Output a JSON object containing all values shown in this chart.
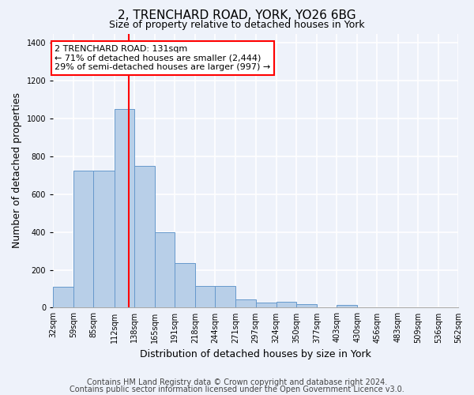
{
  "title": "2, TRENCHARD ROAD, YORK, YO26 6BG",
  "subtitle": "Size of property relative to detached houses in York",
  "xlabel": "Distribution of detached houses by size in York",
  "ylabel": "Number of detached properties",
  "bin_edges": [
    32,
    59,
    85,
    112,
    138,
    165,
    191,
    218,
    244,
    271,
    297,
    324,
    350,
    377,
    403,
    430,
    456,
    483,
    509,
    536,
    562
  ],
  "bar_heights": [
    110,
    725,
    725,
    1050,
    750,
    400,
    235,
    115,
    115,
    45,
    25,
    30,
    20,
    0,
    15,
    0,
    0,
    0,
    0,
    0
  ],
  "bar_color": "#b8cfe8",
  "bar_edge_color": "#6699cc",
  "red_line_x": 131,
  "annotation_line1": "2 TRENCHARD ROAD: 131sqm",
  "annotation_line2": "← 71% of detached houses are smaller (2,444)",
  "annotation_line3": "29% of semi-detached houses are larger (997) →",
  "annotation_box_color": "white",
  "annotation_box_edge_color": "red",
  "ylim": [
    0,
    1450
  ],
  "yticks": [
    0,
    200,
    400,
    600,
    800,
    1000,
    1200,
    1400
  ],
  "footer_line1": "Contains HM Land Registry data © Crown copyright and database right 2024.",
  "footer_line2": "Contains public sector information licensed under the Open Government Licence v3.0.",
  "bg_color": "#eef2fa",
  "plot_bg_color": "#eef2fa",
  "grid_color": "#ffffff",
  "title_fontsize": 11,
  "subtitle_fontsize": 9,
  "ylabel_fontsize": 9,
  "xlabel_fontsize": 9,
  "tick_fontsize": 7,
  "footer_fontsize": 7,
  "annotation_fontsize": 8
}
